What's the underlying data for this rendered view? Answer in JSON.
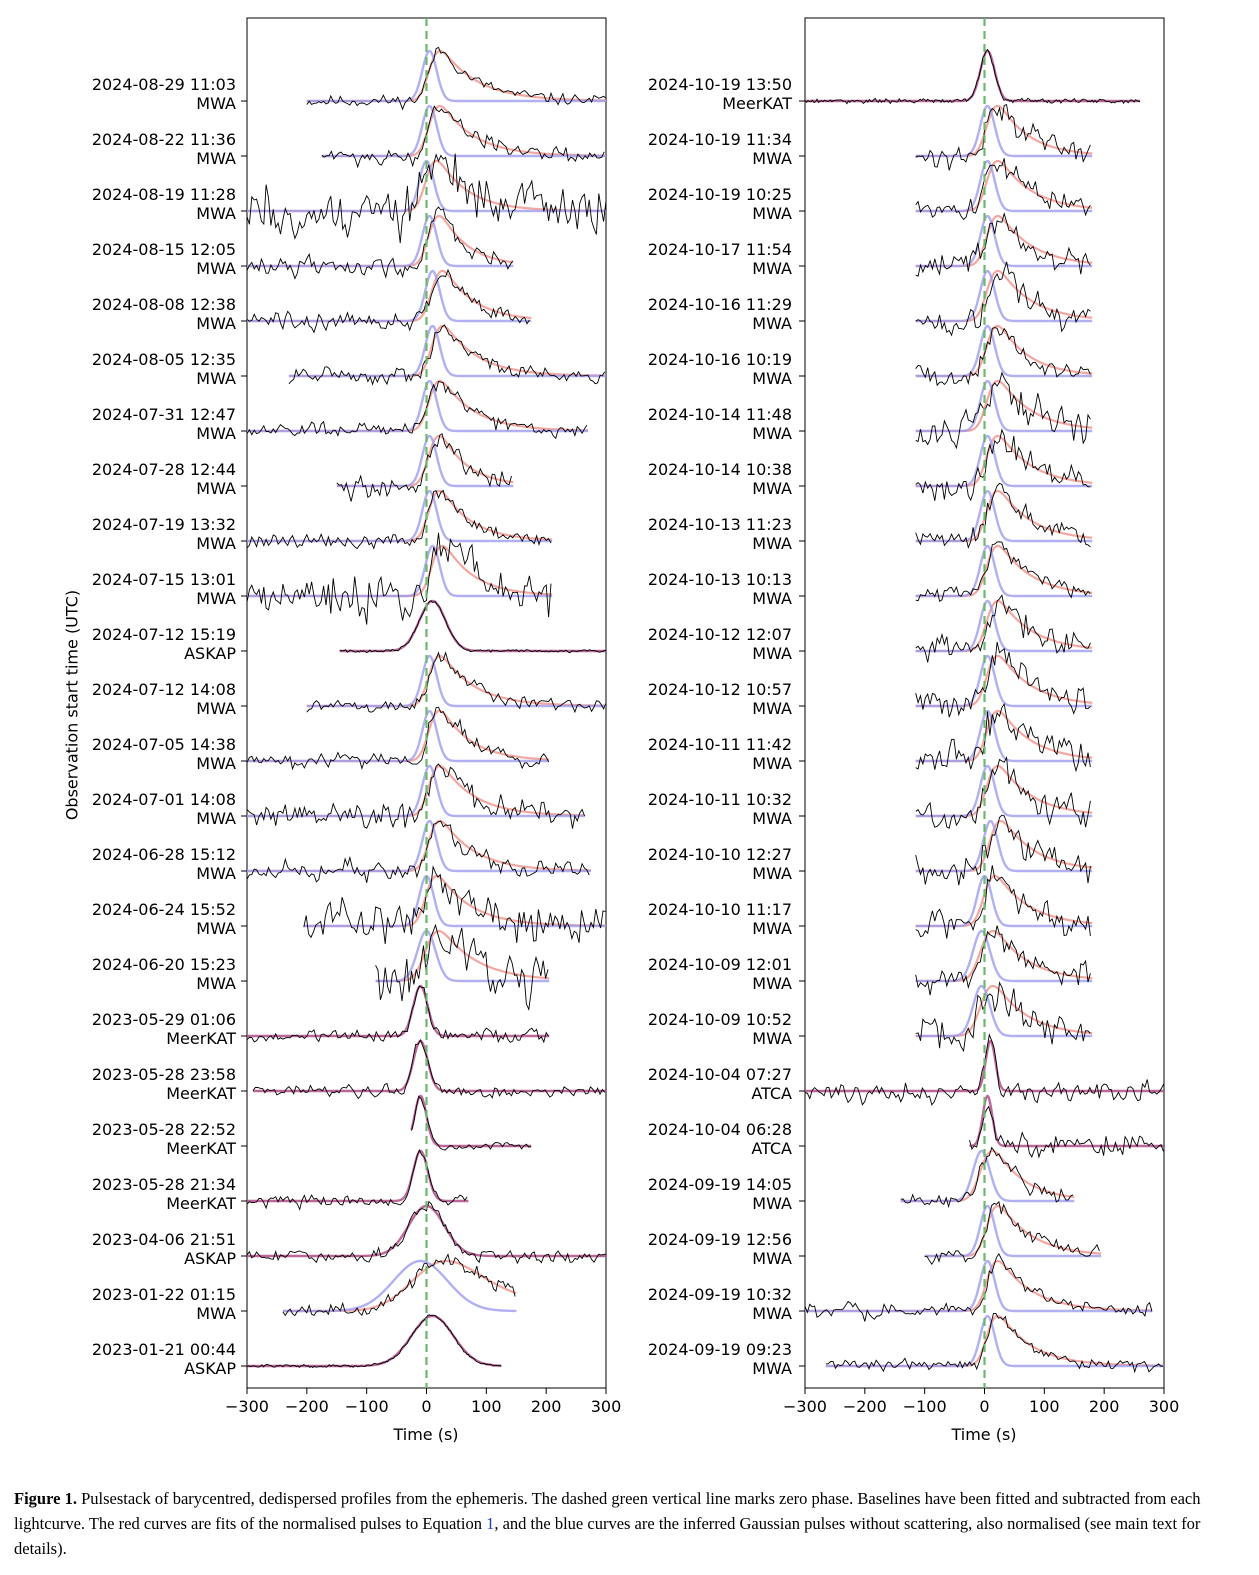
{
  "chart_data": {
    "type": "line",
    "xlabel": "Time (s)",
    "ylabel": "Observation start time (UTC)",
    "xlim": [
      -300,
      300
    ],
    "xticks": [
      -300,
      -200,
      -100,
      0,
      100,
      200,
      300
    ],
    "zero_phase_line": {
      "x": 0,
      "color": "#4caf50",
      "style": "dashed"
    },
    "colors": {
      "data": "#000000",
      "fit": "#f08a80",
      "gaussian": "#9c9cf0",
      "combined": "#b04b88",
      "zero": "#6cb86c"
    },
    "panels": [
      {
        "observations": [
          {
            "date": "2024-08-29 11:03",
            "telescope": "MWA",
            "range": [
              -200,
              300
            ],
            "mu": 5,
            "sigma": 12,
            "tau": 60,
            "noise": 0.08
          },
          {
            "date": "2024-08-22 11:36",
            "telescope": "MWA",
            "range": [
              -175,
              300
            ],
            "mu": 5,
            "sigma": 12,
            "tau": 55,
            "noise": 0.12
          },
          {
            "date": "2024-08-19 11:28",
            "telescope": "MWA",
            "range": [
              -300,
              300
            ],
            "mu": 0,
            "sigma": 12,
            "tau": 50,
            "noise": 0.35
          },
          {
            "date": "2024-08-15 12:05",
            "telescope": "MWA",
            "range": [
              -300,
              145
            ],
            "mu": 5,
            "sigma": 12,
            "tau": 45,
            "noise": 0.12
          },
          {
            "date": "2024-08-08 12:38",
            "telescope": "MWA",
            "range": [
              -300,
              175
            ],
            "mu": 10,
            "sigma": 12,
            "tau": 50,
            "noise": 0.12
          },
          {
            "date": "2024-08-05 12:35",
            "telescope": "MWA",
            "range": [
              -230,
              300
            ],
            "mu": 10,
            "sigma": 12,
            "tau": 55,
            "noise": 0.1
          },
          {
            "date": "2024-07-31 12:47",
            "telescope": "MWA",
            "range": [
              -300,
              270
            ],
            "mu": 5,
            "sigma": 12,
            "tau": 55,
            "noise": 0.1
          },
          {
            "date": "2024-07-28 12:44",
            "telescope": "MWA",
            "range": [
              -150,
              145
            ],
            "mu": 5,
            "sigma": 12,
            "tau": 45,
            "noise": 0.15
          },
          {
            "date": "2024-07-19 13:32",
            "telescope": "MWA",
            "range": [
              -300,
              210
            ],
            "mu": 5,
            "sigma": 12,
            "tau": 50,
            "noise": 0.1
          },
          {
            "date": "2024-07-15 13:01",
            "telescope": "MWA",
            "range": [
              -300,
              210
            ],
            "mu": 10,
            "sigma": 12,
            "tau": 50,
            "noise": 0.3
          },
          {
            "date": "2024-07-12 15:19",
            "telescope": "ASKAP",
            "range": [
              -145,
              300
            ],
            "mu": 10,
            "sigma": 22,
            "tau": 0,
            "noise": 0.02
          },
          {
            "date": "2024-07-12 14:08",
            "telescope": "MWA",
            "range": [
              -200,
              300
            ],
            "mu": 5,
            "sigma": 12,
            "tau": 55,
            "noise": 0.1
          },
          {
            "date": "2024-07-05 14:38",
            "telescope": "MWA",
            "range": [
              -300,
              205
            ],
            "mu": 5,
            "sigma": 12,
            "tau": 50,
            "noise": 0.12
          },
          {
            "date": "2024-07-01 14:08",
            "telescope": "MWA",
            "range": [
              -300,
              265
            ],
            "mu": 5,
            "sigma": 12,
            "tau": 55,
            "noise": 0.18
          },
          {
            "date": "2024-06-28 15:12",
            "telescope": "MWA",
            "range": [
              -300,
              275
            ],
            "mu": 5,
            "sigma": 12,
            "tau": 55,
            "noise": 0.15
          },
          {
            "date": "2024-06-24 15:52",
            "telescope": "MWA",
            "range": [
              -205,
              300
            ],
            "mu": 0,
            "sigma": 12,
            "tau": 55,
            "noise": 0.28
          },
          {
            "date": "2024-06-20 15:23",
            "telescope": "MWA",
            "range": [
              -85,
              205
            ],
            "mu": 0,
            "sigma": 15,
            "tau": 60,
            "noise": 0.35
          },
          {
            "date": "2023-05-29 01:06",
            "telescope": "MeerKAT",
            "range": [
              -300,
              205
            ],
            "mu": -10,
            "sigma": 12,
            "tau": 0,
            "noise": 0.08
          },
          {
            "date": "2023-05-28 23:58",
            "telescope": "MeerKAT",
            "range": [
              -290,
              300
            ],
            "mu": -10,
            "sigma": 12,
            "tau": 0,
            "noise": 0.08
          },
          {
            "date": "2023-05-28 22:52",
            "telescope": "MeerKAT",
            "range": [
              -25,
              175
            ],
            "mu": -10,
            "sigma": 10,
            "tau": 0,
            "noise": 0.05
          },
          {
            "date": "2023-05-28 21:34",
            "telescope": "MeerKAT",
            "range": [
              -300,
              70
            ],
            "mu": -10,
            "sigma": 12,
            "tau": 0,
            "noise": 0.08
          },
          {
            "date": "2023-04-06 21:51",
            "telescope": "ASKAP",
            "range": [
              -300,
              300
            ],
            "mu": 0,
            "sigma": 30,
            "tau": 0,
            "noise": 0.08
          },
          {
            "date": "2023-01-22 01:15",
            "telescope": "MWA",
            "range": [
              -240,
              150
            ],
            "mu": -10,
            "sigma": 45,
            "tau": 80,
            "noise": 0.1
          },
          {
            "date": "2023-01-21 00:44",
            "telescope": "ASKAP",
            "range": [
              -300,
              125
            ],
            "mu": 10,
            "sigma": 35,
            "tau": 0,
            "noise": 0.02
          }
        ]
      },
      {
        "observations": [
          {
            "date": "2024-10-19 13:50",
            "telescope": "MeerKAT",
            "range": [
              -300,
              260
            ],
            "mu": 5,
            "sigma": 12,
            "tau": 0,
            "noise": 0.03
          },
          {
            "date": "2024-10-19 11:34",
            "telescope": "MWA",
            "range": [
              -115,
              180
            ],
            "mu": 5,
            "sigma": 12,
            "tau": 50,
            "noise": 0.15
          },
          {
            "date": "2024-10-19 10:25",
            "telescope": "MWA",
            "range": [
              -115,
              180
            ],
            "mu": 5,
            "sigma": 12,
            "tau": 55,
            "noise": 0.15
          },
          {
            "date": "2024-10-17 11:54",
            "telescope": "MWA",
            "range": [
              -115,
              180
            ],
            "mu": 5,
            "sigma": 12,
            "tau": 55,
            "noise": 0.18
          },
          {
            "date": "2024-10-16 11:29",
            "telescope": "MWA",
            "range": [
              -115,
              180
            ],
            "mu": 5,
            "sigma": 12,
            "tau": 55,
            "noise": 0.2
          },
          {
            "date": "2024-10-16 10:19",
            "telescope": "MWA",
            "range": [
              -115,
              180
            ],
            "mu": 5,
            "sigma": 12,
            "tau": 50,
            "noise": 0.15
          },
          {
            "date": "2024-10-14 11:48",
            "telescope": "MWA",
            "range": [
              -115,
              180
            ],
            "mu": 5,
            "sigma": 12,
            "tau": 55,
            "noise": 0.22
          },
          {
            "date": "2024-10-14 10:38",
            "telescope": "MWA",
            "range": [
              -115,
              180
            ],
            "mu": 5,
            "sigma": 12,
            "tau": 55,
            "noise": 0.22
          },
          {
            "date": "2024-10-13 11:23",
            "telescope": "MWA",
            "range": [
              -115,
              180
            ],
            "mu": 5,
            "sigma": 12,
            "tau": 55,
            "noise": 0.15
          },
          {
            "date": "2024-10-13 10:13",
            "telescope": "MWA",
            "range": [
              -115,
              180
            ],
            "mu": 5,
            "sigma": 12,
            "tau": 55,
            "noise": 0.12
          },
          {
            "date": "2024-10-12 12:07",
            "telescope": "MWA",
            "range": [
              -115,
              180
            ],
            "mu": 5,
            "sigma": 12,
            "tau": 55,
            "noise": 0.2
          },
          {
            "date": "2024-10-12 10:57",
            "telescope": "MWA",
            "range": [
              -115,
              180
            ],
            "mu": 5,
            "sigma": 12,
            "tau": 55,
            "noise": 0.2
          },
          {
            "date": "2024-10-11 11:42",
            "telescope": "MWA",
            "range": [
              -115,
              180
            ],
            "mu": 5,
            "sigma": 12,
            "tau": 55,
            "noise": 0.25
          },
          {
            "date": "2024-10-11 10:32",
            "telescope": "MWA",
            "range": [
              -115,
              180
            ],
            "mu": 5,
            "sigma": 12,
            "tau": 55,
            "noise": 0.2
          },
          {
            "date": "2024-10-10 12:27",
            "telescope": "MWA",
            "range": [
              -115,
              180
            ],
            "mu": 10,
            "sigma": 12,
            "tau": 55,
            "noise": 0.22
          },
          {
            "date": "2024-10-10 11:17",
            "telescope": "MWA",
            "range": [
              -115,
              180
            ],
            "mu": 0,
            "sigma": 12,
            "tau": 55,
            "noise": 0.2
          },
          {
            "date": "2024-10-09 12:01",
            "telescope": "MWA",
            "range": [
              -115,
              180
            ],
            "mu": -5,
            "sigma": 14,
            "tau": 55,
            "noise": 0.2
          },
          {
            "date": "2024-10-09 10:52",
            "telescope": "MWA",
            "range": [
              -115,
              180
            ],
            "mu": -5,
            "sigma": 14,
            "tau": 55,
            "noise": 0.25
          },
          {
            "date": "2024-10-04 07:27",
            "telescope": "ATCA",
            "range": [
              -300,
              300
            ],
            "mu": 10,
            "sigma": 8,
            "tau": 0,
            "noise": 0.15
          },
          {
            "date": "2024-10-04 06:28",
            "telescope": "ATCA",
            "range": [
              -25,
              300
            ],
            "mu": 5,
            "sigma": 8,
            "tau": 0,
            "noise": 0.15
          },
          {
            "date": "2024-09-19 14:05",
            "telescope": "MWA",
            "range": [
              -140,
              150
            ],
            "mu": -5,
            "sigma": 14,
            "tau": 50,
            "noise": 0.1
          },
          {
            "date": "2024-09-19 12:56",
            "telescope": "MWA",
            "range": [
              -100,
              195
            ],
            "mu": 5,
            "sigma": 12,
            "tau": 55,
            "noise": 0.1
          },
          {
            "date": "2024-09-19 10:32",
            "telescope": "MWA",
            "range": [
              -300,
              280
            ],
            "mu": 5,
            "sigma": 12,
            "tau": 55,
            "noise": 0.1
          },
          {
            "date": "2024-09-19 09:23",
            "telescope": "MWA",
            "range": [
              -265,
              300
            ],
            "mu": 5,
            "sigma": 12,
            "tau": 55,
            "noise": 0.08
          }
        ]
      }
    ]
  },
  "caption": {
    "label": "Figure 1.",
    "text_before": " Pulsestack of barycentred, dedispersed profiles from the ephemeris. The dashed green vertical line marks zero phase. Baselines have been fitted and subtracted from each lightcurve. The red curves are fits of the normalised pulses to Equation ",
    "eq_ref": "1",
    "text_after": ", and the blue curves are the inferred Gaussian pulses without scattering, also normalised (see main text for details)."
  }
}
